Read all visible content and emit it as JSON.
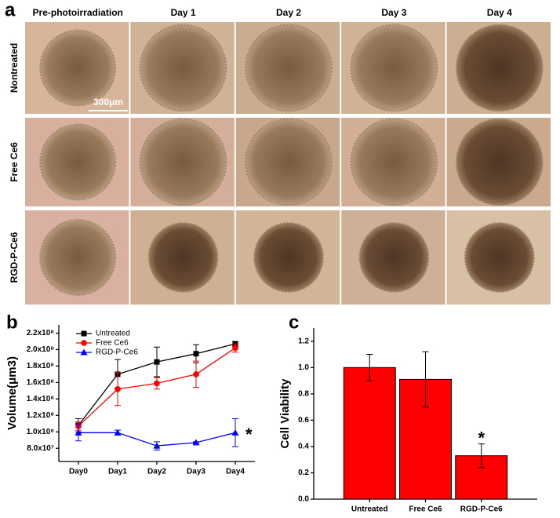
{
  "panel_a": {
    "label": "a",
    "columns": [
      "Pre-photoirradiation",
      "Day 1",
      "Day 2",
      "Day 3",
      "Day 4"
    ],
    "rows": [
      "Nontreated",
      "Free Ce6",
      "RGD-P-Ce6"
    ],
    "scale_bar": "300μm"
  },
  "chart_data": [
    {
      "type": "line",
      "label": "b",
      "ylabel": "Volume(μm3)",
      "categories": [
        "Day0",
        "Day1",
        "Day2",
        "Day3",
        "Day4"
      ],
      "series": [
        {
          "name": "Untreated",
          "color": "#000000",
          "marker": "square",
          "values": [
            108000000,
            170000000,
            185000000,
            195000000,
            207000000
          ],
          "errors": [
            8000000,
            18000000,
            18000000,
            11000000,
            3000000
          ]
        },
        {
          "name": "Free Ce6",
          "color": "#ff0000",
          "marker": "circle",
          "values": [
            107000000,
            152000000,
            159000000,
            170000000,
            202000000
          ],
          "errors": [
            5000000,
            20000000,
            7000000,
            16000000,
            5000000
          ]
        },
        {
          "name": "RGD-P-Ce6",
          "color": "#0000ff",
          "marker": "triangle",
          "values": [
            99000000,
            99000000,
            83000000,
            87000000,
            99000000
          ],
          "errors": [
            10000000,
            3000000,
            5000000,
            1000000,
            17000000
          ]
        }
      ],
      "ylim": [
        64000000,
        230000000
      ],
      "yticks": [
        {
          "value": 80000000,
          "label": "8.0x10⁷"
        },
        {
          "value": 100000000,
          "label": "1.0x10⁸"
        },
        {
          "value": 120000000,
          "label": "1.2x10⁸"
        },
        {
          "value": 140000000,
          "label": "1.4x10⁸"
        },
        {
          "value": 160000000,
          "label": "1.6x10⁸"
        },
        {
          "value": 180000000,
          "label": "1.8x10⁸"
        },
        {
          "value": 200000000,
          "label": "2.0x10⁸"
        },
        {
          "value": 220000000,
          "label": "2.2x10⁸"
        }
      ],
      "legend": "upper-left",
      "annotation": "*"
    },
    {
      "type": "bar",
      "label": "c",
      "ylabel": "Cell Viability",
      "categories": [
        "Untreated",
        "Free Ce6",
        "RGD-P-Ce6"
      ],
      "values": [
        1.0,
        0.91,
        0.33
      ],
      "errors": [
        0.1,
        0.21,
        0.09
      ],
      "color": "#ff0000",
      "ylim": [
        0,
        1.3
      ],
      "yticks": [
        {
          "value": 0,
          "label": "0.0"
        },
        {
          "value": 0.2,
          "label": "0.2"
        },
        {
          "value": 0.4,
          "label": "0.4"
        },
        {
          "value": 0.6,
          "label": "0.6"
        },
        {
          "value": 0.8,
          "label": "0.8"
        },
        {
          "value": 1.0,
          "label": "1.0"
        },
        {
          "value": 1.2,
          "label": "1.2"
        }
      ],
      "annotation": "*"
    }
  ]
}
